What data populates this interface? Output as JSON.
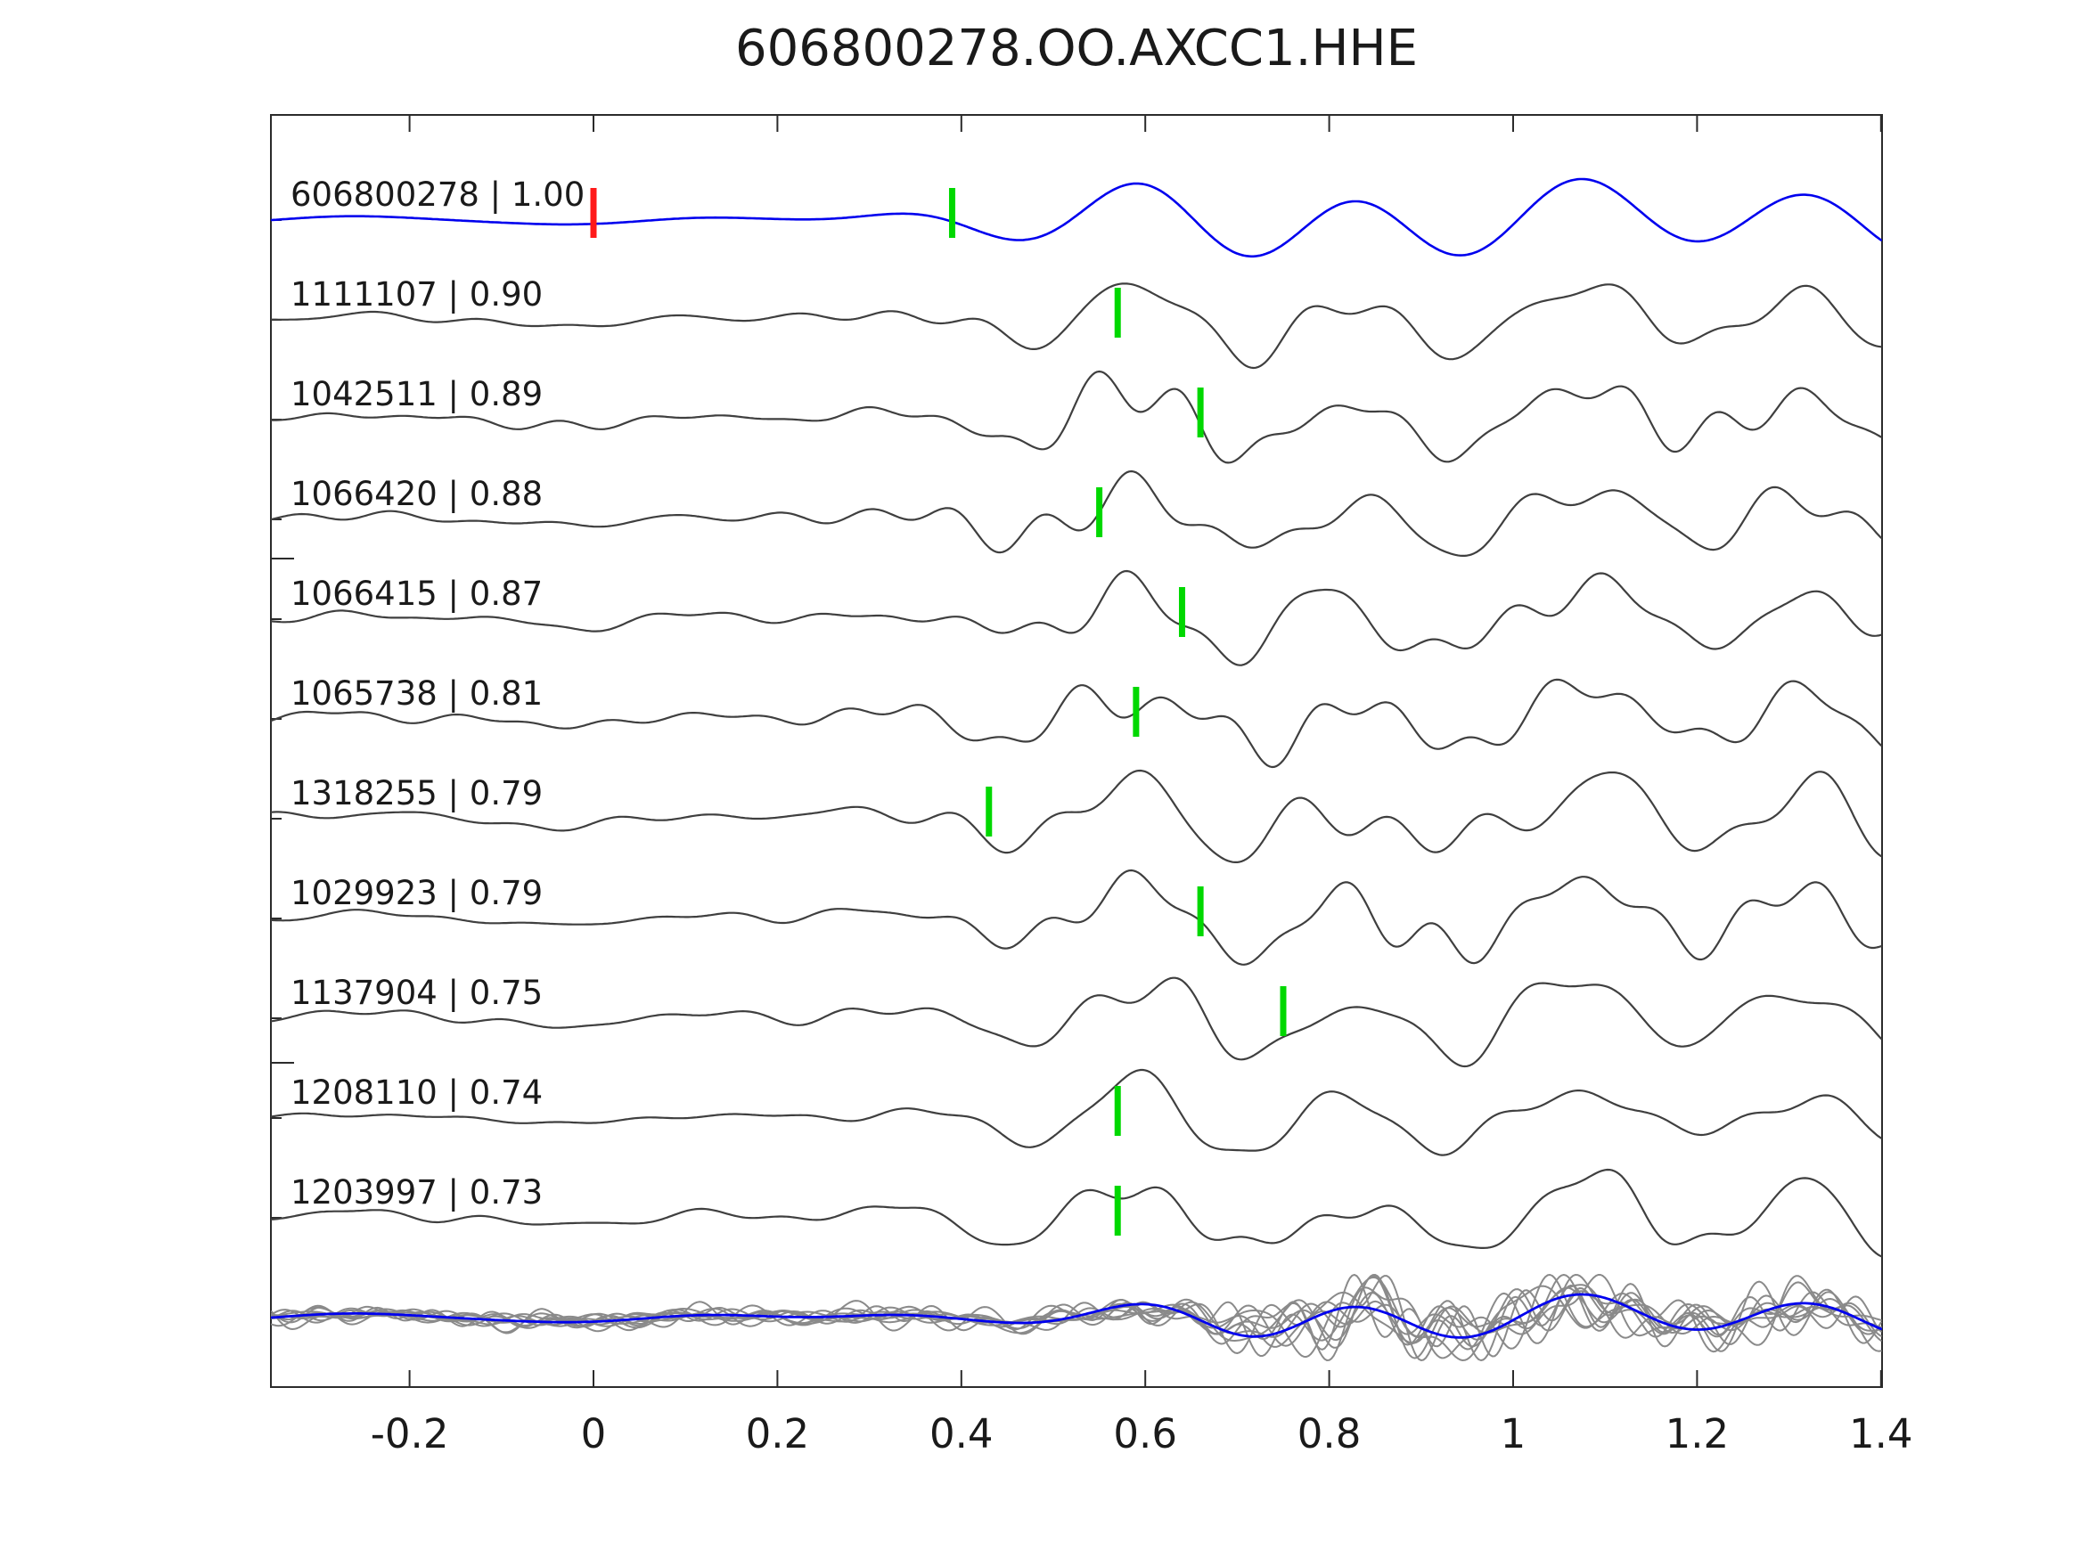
{
  "title": "606800278.OO.AXCC1.HHE",
  "chart_data": {
    "type": "line",
    "title": "606800278.OO.AXCC1.HHE",
    "network_station_channel": "OO.AXCC1.HHE",
    "template_event_id": "606800278",
    "xlim": [
      -0.35,
      1.4
    ],
    "x_ticks": [
      -0.2,
      0,
      0.2,
      0.4,
      0.6,
      0.8,
      1,
      1.2,
      1.4
    ],
    "x_tick_labels": [
      "-0.2",
      "0",
      "0.2",
      "0.4",
      "0.6",
      "0.8",
      "1",
      "1.2",
      "1.4"
    ],
    "grid": false,
    "legend": null,
    "traces": [
      {
        "id": "606800278",
        "correlation": "1.00",
        "label": "606800278 | 1.00",
        "role": "template",
        "pick_time": 0.39,
        "origin_marker_time": 0.0
      },
      {
        "id": "1111107",
        "correlation": "0.90",
        "label": "1111107 | 0.90",
        "role": "detection",
        "pick_time": 0.57
      },
      {
        "id": "1042511",
        "correlation": "0.89",
        "label": "1042511 | 0.89",
        "role": "detection",
        "pick_time": 0.66
      },
      {
        "id": "1066420",
        "correlation": "0.88",
        "label": "1066420 | 0.88",
        "role": "detection",
        "pick_time": 0.55
      },
      {
        "id": "1066415",
        "correlation": "0.87",
        "label": "1066415 | 0.87",
        "role": "detection",
        "pick_time": 0.64
      },
      {
        "id": "1065738",
        "correlation": "0.81",
        "label": "1065738 | 0.81",
        "role": "detection",
        "pick_time": 0.59
      },
      {
        "id": "1318255",
        "correlation": "0.79",
        "label": "1318255 | 0.79",
        "role": "detection",
        "pick_time": 0.43
      },
      {
        "id": "1029923",
        "correlation": "0.79",
        "label": "1029923 | 0.79",
        "role": "detection",
        "pick_time": 0.66
      },
      {
        "id": "1137904",
        "correlation": "0.75",
        "label": "1137904 | 0.75",
        "role": "detection",
        "pick_time": 0.75
      },
      {
        "id": "1208110",
        "correlation": "0.74",
        "label": "1208110 | 0.74",
        "role": "detection",
        "pick_time": 0.57
      },
      {
        "id": "1203997",
        "correlation": "0.73",
        "label": "1203997 | 0.73",
        "role": "detection",
        "pick_time": 0.57
      }
    ],
    "overlay_row": {
      "description": "all detection waveforms superimposed in gray with blue template waveform on top",
      "n_gray_traces": 10
    },
    "colors": {
      "template_trace": "#0000ee",
      "detection_trace": "#3f3f3f",
      "overlay_gray": "#8a8a8a",
      "pick_marker": "#00d800",
      "template_pick_marker": "#ff1a1a",
      "axis": "#2b2b2b",
      "text": "#1a1a1a",
      "background": "#ffffff"
    }
  }
}
